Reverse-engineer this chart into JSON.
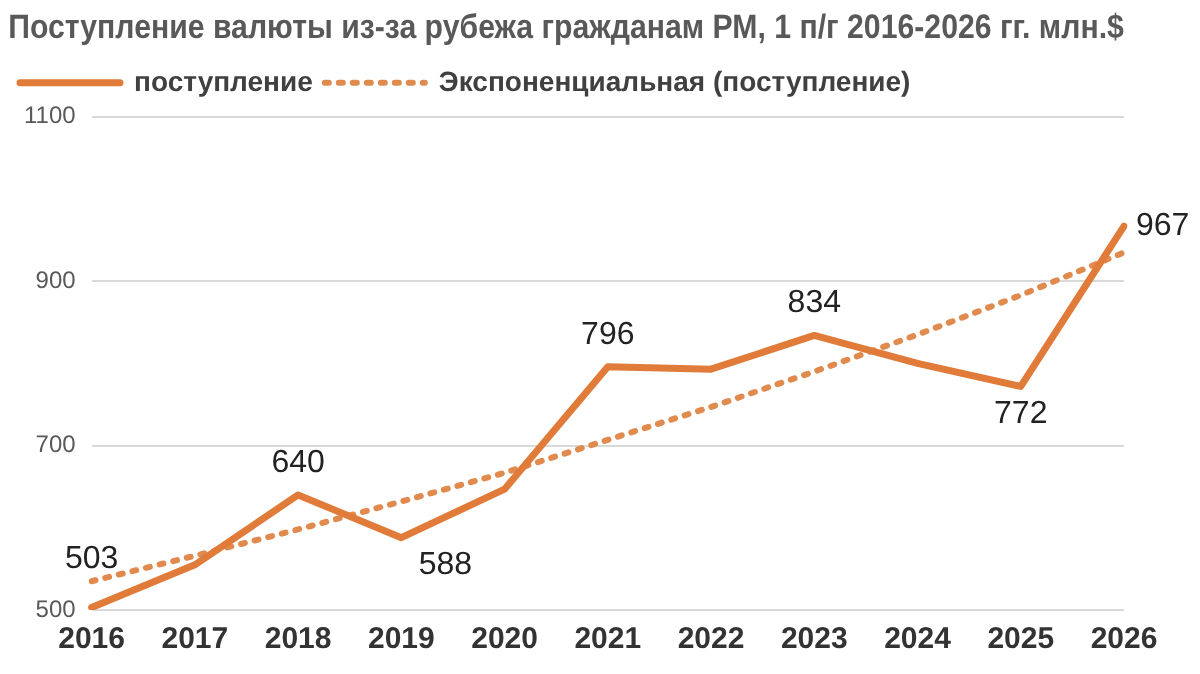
{
  "chart_data": {
    "type": "line",
    "title": "Поступление валюты из-за рубежа гражданам РМ, 1 п/г 2016-2026 гг. млн.$",
    "categories": [
      "2016",
      "2017",
      "2018",
      "2019",
      "2020",
      "2021",
      "2022",
      "2023",
      "2024",
      "2025",
      "2026"
    ],
    "series": [
      {
        "name": "поступление",
        "color": "#e07b39",
        "values": [
          503,
          555,
          640,
          588,
          647,
          796,
          793,
          834,
          800,
          772,
          967
        ],
        "value_labels": [
          "503",
          null,
          "640",
          "588",
          null,
          "796",
          null,
          "834",
          null,
          "772",
          "967"
        ],
        "line_style": "solid"
      },
      {
        "name": "Экспоненциальная (поступление)",
        "color": "#e08a4e",
        "values": [
          535,
          566,
          598,
          632,
          667,
          707,
          747,
          790,
          835,
          883,
          935
        ],
        "line_style": "dotted"
      }
    ],
    "ylim": [
      500,
      1100
    ],
    "yticks": [
      500,
      700,
      900,
      1100
    ],
    "grid": "y",
    "legend": "top left",
    "marker": "none"
  }
}
